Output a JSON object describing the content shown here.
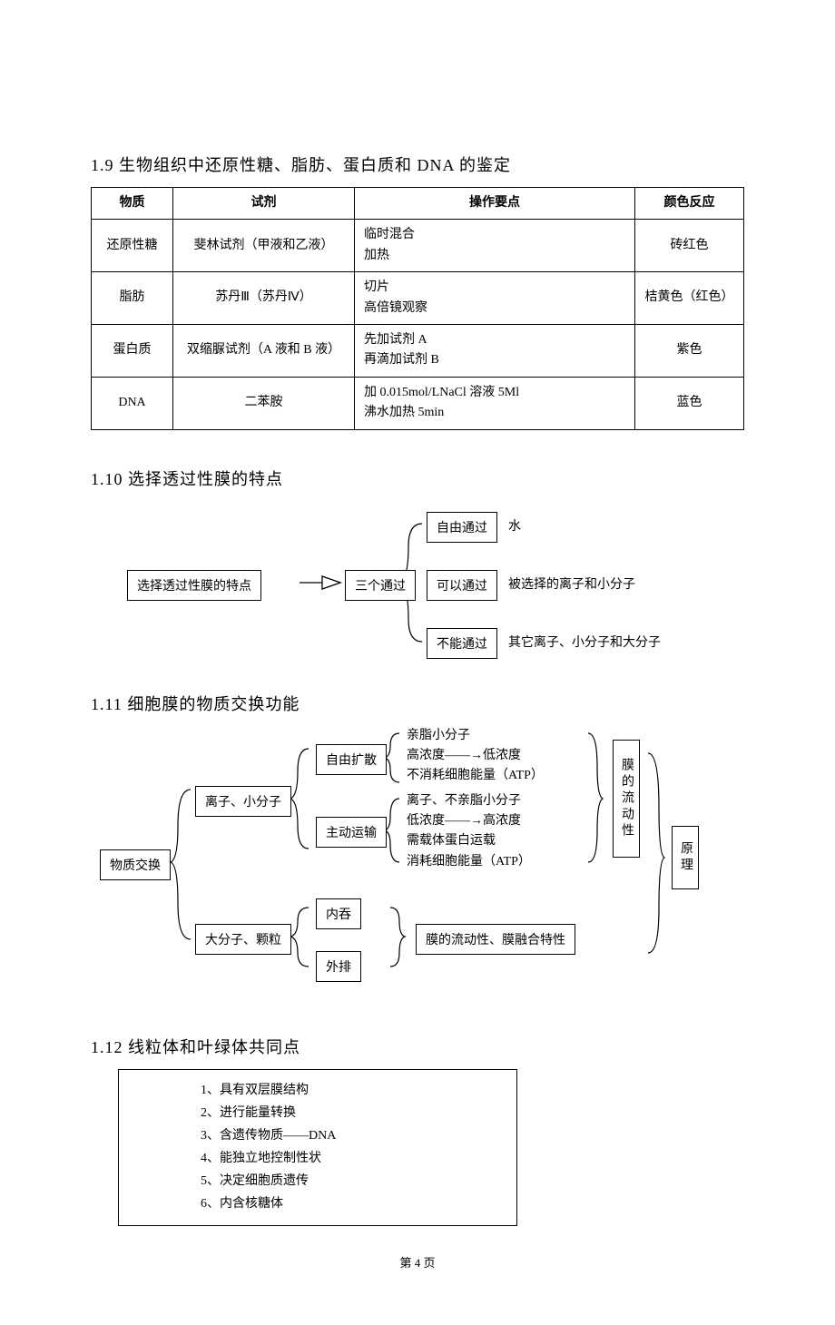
{
  "section_1_9": {
    "title": "1.9 生物组织中还原性糖、脂肪、蛋白质和 DNA 的鉴定",
    "headers": [
      "物质",
      "试剂",
      "操作要点",
      "颜色反应"
    ],
    "rows": [
      {
        "substance": "还原性糖",
        "reagent": "斐林试剂（甲液和乙液）",
        "steps": "临时混合\n加热",
        "color": "砖红色"
      },
      {
        "substance": "脂肪",
        "reagent": "苏丹Ⅲ（苏丹Ⅳ）",
        "steps": "切片\n高倍镜观察",
        "color": "桔黄色（红色）"
      },
      {
        "substance": "蛋白质",
        "reagent": "双缩脲试剂（A 液和 B 液）",
        "steps": "先加试剂 A\n再滴加试剂 B",
        "color": "紫色"
      },
      {
        "substance": "DNA",
        "reagent": "二苯胺",
        "steps": "加 0.015mol/LNaCl 溶液 5Ml\n沸水加热 5min",
        "color": "蓝色"
      }
    ]
  },
  "section_1_10": {
    "title": "1.10 选择透过性膜的特点",
    "root": "选择透过性膜的特点",
    "mid": "三个通过",
    "branches": [
      {
        "label": "自由通过",
        "desc": "水"
      },
      {
        "label": "可以通过",
        "desc": "被选择的离子和小分子"
      },
      {
        "label": "不能通过",
        "desc": "其它离子、小分子和大分子"
      }
    ]
  },
  "section_1_11": {
    "title": "1.11 细胞膜的物质交换功能",
    "root": "物质交换",
    "branch1": "离子、小分子",
    "branch2": "大分子、颗粒",
    "sub1a": "自由扩散",
    "sub1b": "主动运输",
    "sub2a": "内吞",
    "sub2b": "外排",
    "free_diffusion_details": "亲脂小分子\n高浓度——→低浓度\n不消耗细胞能量（ATP）",
    "active_transport_details": "离子、不亲脂小分子\n低浓度——→高浓度\n需载体蛋白运载\n消耗细胞能量（ATP）",
    "membrane_v": "膜的流动性",
    "principle": "原理",
    "fusion": "膜的流动性、膜融合特性"
  },
  "section_1_12": {
    "title": "1.12 线粒体和叶绿体共同点",
    "items": [
      "1、具有双层膜结构",
      "2、进行能量转换",
      "3、含遗传物质——DNA",
      "4、能独立地控制性状",
      "5、决定细胞质遗传",
      "6、内含核糖体"
    ]
  },
  "footer": "第 4 页"
}
